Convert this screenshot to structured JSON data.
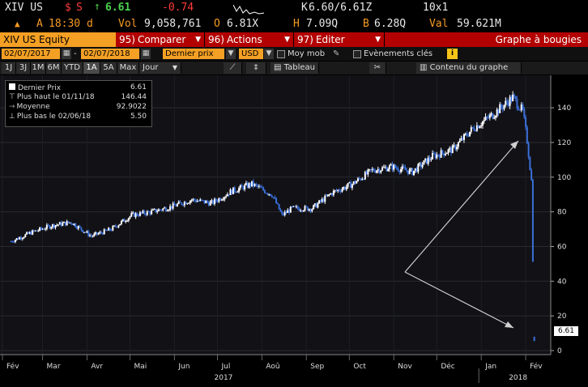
{
  "quote": {
    "ticker": "XIV US",
    "currency": "$",
    "flag": "S",
    "change_arrow": "↑",
    "last": "6.61",
    "change": "-0.74",
    "time_prefix": "A",
    "time": "18:30 d",
    "vol_label": "Vol",
    "volume": "9,058,761",
    "open_label": "O",
    "open": "6.81X",
    "high_label": "H",
    "high": "7.09Q",
    "bid_ask_label": "K",
    "bid_ask": "6.60/6.61Z",
    "low_label": "B",
    "low": "6.28Q",
    "size": "10x1",
    "val_label": "Val",
    "value": "59.621M"
  },
  "command_bar": {
    "security": "XIV US Equity",
    "compare_num": "95)",
    "compare": "Comparer",
    "actions_num": "96)",
    "actions": "Actions",
    "edit_num": "97)",
    "edit": "Editer",
    "chart_title": "Graphe à bougies"
  },
  "date_bar": {
    "start_date": "02/07/2017",
    "end_date": "02/07/2018",
    "price_field": "Dernier prix",
    "currency_field": "USD",
    "moving_avg": "Moy mob",
    "events": "Evènements clés",
    "info": "i"
  },
  "range_bar": {
    "ranges": [
      "1J",
      "3J",
      "1M",
      "6M",
      "YTD",
      "1A",
      "5A",
      "Max"
    ],
    "active": "1A",
    "period": "Jour",
    "table": "Tableau",
    "chart_content": "Contenu du graphe"
  },
  "legend": {
    "last_price_label": "Dernier Prix",
    "last_price": "6.61",
    "high_label": "Plus haut le 01/11/18",
    "high": "146.44",
    "average_label": "Moyenne",
    "average": "92.9022",
    "low_label": "Plus bas le 02/06/18",
    "low": "5.50"
  },
  "last_price_tag": "6.61",
  "colors": {
    "accent": "#f4a024",
    "command_bar": "#b30000",
    "candle_up": "#ffffff",
    "candle_down": "#3b6fd8",
    "gain": "#4bd34b",
    "loss": "#ff3b3b"
  },
  "chart_data": {
    "type": "candlestick",
    "x_months": [
      "Fév",
      "Mar",
      "Avr",
      "Mai",
      "Jun",
      "Jul",
      "Aoû",
      "Sep",
      "Oct",
      "Nov",
      "Déc",
      "Jan",
      "Fév"
    ],
    "x_years": [
      "2017",
      "2018"
    ],
    "y_ticks": [
      0,
      20,
      40,
      60,
      80,
      100,
      120,
      140
    ],
    "ylim": [
      0,
      155
    ],
    "series": [
      {
        "x": [
          "2017-02-07",
          "2017-02-21",
          "2017-03-07",
          "2017-03-21",
          "2017-04-04",
          "2017-04-18",
          "2017-05-02",
          "2017-05-16",
          "2017-05-30",
          "2017-06-13",
          "2017-06-27",
          "2017-07-11",
          "2017-07-25",
          "2017-08-08",
          "2017-08-15",
          "2017-08-22",
          "2017-09-05",
          "2017-09-19",
          "2017-10-03",
          "2017-10-17",
          "2017-10-31",
          "2017-11-14",
          "2017-11-28",
          "2017-12-12",
          "2017-12-26",
          "2018-01-09",
          "2018-01-23",
          "2018-01-30",
          "2018-02-02",
          "2018-02-05",
          "2018-02-07"
        ],
        "close": [
          63,
          68,
          72,
          74,
          66,
          70,
          78,
          80,
          83,
          87,
          85,
          92,
          96,
          90,
          78,
          82,
          82,
          91,
          96,
          104,
          106,
          103,
          112,
          116,
          128,
          136,
          146,
          138,
          121,
          98,
          6.61
        ]
      }
    ]
  }
}
